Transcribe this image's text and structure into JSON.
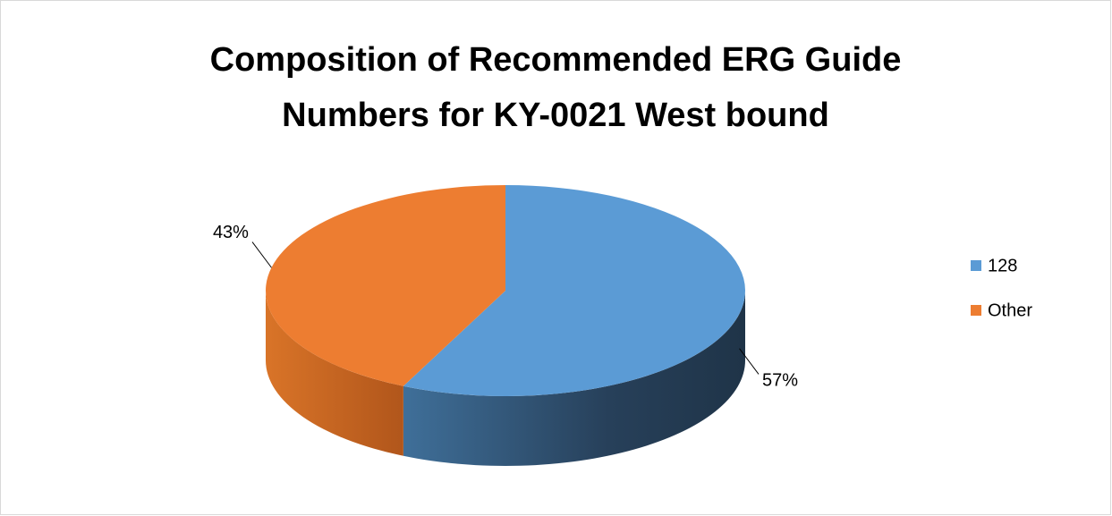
{
  "chart_data": {
    "type": "pie3d",
    "title": "Composition of Recommended ERG Guide Numbers for KY-0021 West bound",
    "categories": [
      "128",
      "Other"
    ],
    "values": [
      57,
      43
    ],
    "value_labels": [
      "57%",
      "43%"
    ],
    "colors": [
      "#5b9bd5",
      "#ed7d31"
    ],
    "legend": "right"
  }
}
